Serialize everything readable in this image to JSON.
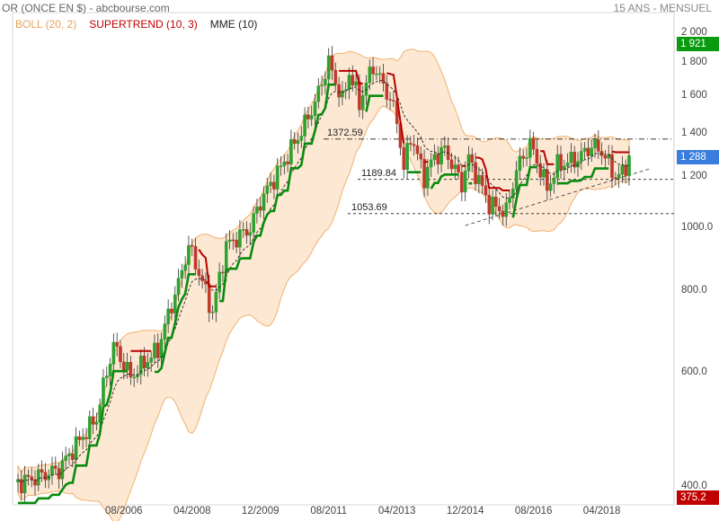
{
  "header": {
    "title": "OR (ONCE EN $) - abcbourse.com",
    "period": "15 ANS - MENSUEL"
  },
  "legend": [
    {
      "label": "BOLL (20, 2)",
      "color": "#f0a050"
    },
    {
      "label": "SUPERTREND (10, 3)",
      "color": "#c00000"
    },
    {
      "label": "MME (10)",
      "color": "#222222"
    }
  ],
  "tags": {
    "high": {
      "text": "1 921",
      "value": 1921,
      "color": "#0a9a10"
    },
    "last": {
      "text": "1 288",
      "value": 1288,
      "color": "#3b7ddd"
    },
    "low": {
      "text": "375.2",
      "value": 375.2,
      "color": "#c00000"
    }
  },
  "levels": [
    {
      "label": "1372.59",
      "value": 1372.59
    },
    {
      "label": "1189.84",
      "value": 1189.84
    },
    {
      "label": "1053.69",
      "value": 1053.69
    }
  ],
  "chart_data": {
    "type": "candlestick",
    "title": "OR (ONCE EN $)",
    "y_scale": "log",
    "ylim": [
      375,
      2150
    ],
    "y_ticks": [
      "2 000",
      "1 800",
      "1 600",
      "1 400",
      "1 200",
      "1000.0",
      "800.0",
      "600.0",
      "400.0"
    ],
    "y_tick_values": [
      2000,
      1800,
      1600,
      1400,
      1200,
      1000,
      800,
      600,
      400
    ],
    "x_ticks": [
      "08/2006",
      "04/2008",
      "12/2009",
      "08/2011",
      "04/2013",
      "12/2014",
      "08/2016",
      "04/2018"
    ],
    "x_range": [
      "2004-01",
      "2018-12"
    ],
    "anchors": [
      [
        "2004-01",
        405
      ],
      [
        "2005-01",
        425
      ],
      [
        "2005-12",
        510
      ],
      [
        "2006-05",
        660
      ],
      [
        "2006-10",
        590
      ],
      [
        "2007-06",
        650
      ],
      [
        "2007-12",
        820
      ],
      [
        "2008-03",
        940
      ],
      [
        "2008-10",
        740
      ],
      [
        "2009-02",
        940
      ],
      [
        "2009-09",
        1000
      ],
      [
        "2009-12",
        1100
      ],
      [
        "2010-06",
        1240
      ],
      [
        "2010-12",
        1410
      ],
      [
        "2011-04",
        1560
      ],
      [
        "2011-08",
        1800
      ],
      [
        "2011-12",
        1570
      ],
      [
        "2012-02",
        1740
      ],
      [
        "2012-05",
        1560
      ],
      [
        "2012-09",
        1780
      ],
      [
        "2012-12",
        1660
      ],
      [
        "2013-02",
        1580
      ],
      [
        "2013-04",
        1470
      ],
      [
        "2013-06",
        1230
      ],
      [
        "2013-08",
        1390
      ],
      [
        "2013-12",
        1200
      ],
      [
        "2014-03",
        1290
      ],
      [
        "2014-06",
        1320
      ],
      [
        "2014-11",
        1170
      ],
      [
        "2015-01",
        1280
      ],
      [
        "2015-07",
        1090
      ],
      [
        "2015-12",
        1060
      ],
      [
        "2016-03",
        1230
      ],
      [
        "2016-07",
        1350
      ],
      [
        "2016-12",
        1150
      ],
      [
        "2017-03",
        1250
      ],
      [
        "2017-09",
        1280
      ],
      [
        "2018-01",
        1340
      ],
      [
        "2018-04",
        1315
      ],
      [
        "2018-08",
        1200
      ],
      [
        "2018-10",
        1215
      ],
      [
        "2018-12",
        1288
      ]
    ],
    "series": [
      {
        "name": "BOLL (20, 2)",
        "type": "band"
      },
      {
        "name": "SUPERTREND (10, 3)",
        "type": "line"
      },
      {
        "name": "MME (10)",
        "type": "line"
      }
    ],
    "reference_lines": [
      1372.59,
      1189.84,
      1053.69
    ],
    "trendline": [
      [
        "2014-12",
        1010
      ],
      [
        "2019-06",
        1235
      ]
    ],
    "legend_position": "top-left",
    "grid": false
  }
}
